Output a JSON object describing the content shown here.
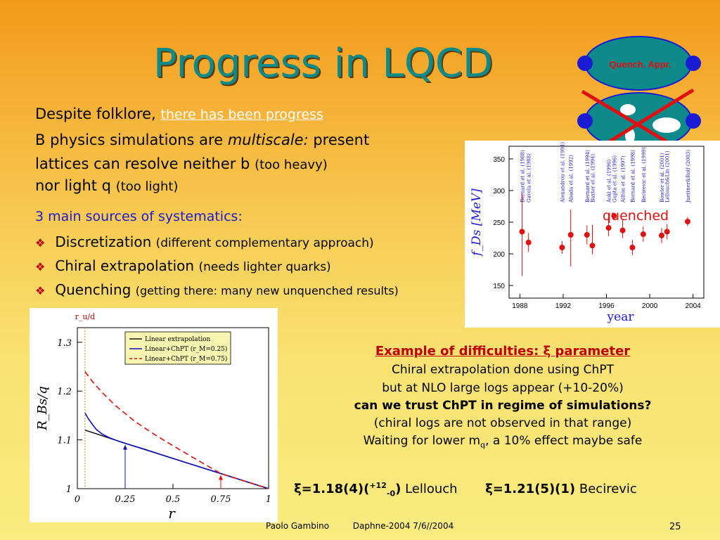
{
  "slide": {
    "title": "Progress in LQCD",
    "line1_prefix": "Despite folklore, ",
    "line1_link": "there has been progress",
    "line2a": "B physics simulations are ",
    "line2b": "multiscale:",
    "line2c": " present",
    "line3a": "lattices can resolve neither b ",
    "line3b": "(too heavy)",
    "line4a": "nor light q ",
    "line4b": "(too light)",
    "sources_heading": "3 main sources of systematics:",
    "bullets": [
      {
        "main": "Discretization ",
        "note": "(different complementary approach)"
      },
      {
        "main": "Chiral extrapolation ",
        "note": "(needs lighter quarks)"
      },
      {
        "main": "Quenching ",
        "note": "(getting there: many new unquenched results)"
      }
    ],
    "example_title": "Example of difficulties: ξ parameter",
    "example_lines": [
      "Chiral extrapolation done using ChPT",
      "but at NLO large logs appear (+10-20%)"
    ],
    "example_bold": "can we trust ChPT in regime of simulations?",
    "example_lines2": [
      "(chiral logs are not observed in that range)"
    ],
    "example_mq_pre": "Waiting for lower m",
    "example_mq_sub": "q",
    "example_mq_post": ", a 10% effect maybe safe",
    "result1_a": "ξ=1.18(4)(",
    "result1_sup": "+12",
    "result1_sub": "-0",
    "result1_b": ")",
    "result1_name": " Lellouch",
    "result2": "ξ=1.21(5)(1)",
    "result2_name": " Becirevic",
    "footer_author": "Paolo Gambino",
    "footer_conf": "Daphne-2004  7/6//2004",
    "page_number": "25",
    "badge_label": "Quench. Appr.",
    "quenched_label": "quenched"
  },
  "chart_data": [
    {
      "type": "scatter",
      "title": "",
      "xlabel": "year",
      "ylabel": "f_Ds [MeV]",
      "xlim": [
        1987,
        2005
      ],
      "ylim": [
        130,
        370
      ],
      "xticks": [
        "1988",
        "1992",
        "1996",
        "2000",
        "2004"
      ],
      "yticks": [
        "150",
        "200",
        "250",
        "300",
        "350"
      ],
      "grid": false,
      "references": [
        "Bernard et al. (1988)",
        "Gavela et al. (1988)",
        "Alexandrou et al. (1991)",
        "Abada et al. (1992)",
        "Bernard et al. (1994)",
        "Baxter et al. (1994)",
        "Aoki et al. (1996)",
        "Gupta et al. (1996)",
        "Allton et al. (1997)",
        "Bernard et al. (1998)",
        "Becirevic et al. (1999)",
        "Bowler et al. (2001)",
        "Lellouch&Lin (2001)",
        "Juettner&Rolf (2003)"
      ],
      "points": [
        {
          "x": 1988.2,
          "y": 235,
          "err_lo": 70,
          "err_hi": 60
        },
        {
          "x": 1988.8,
          "y": 218,
          "err_lo": 15,
          "err_hi": 15
        },
        {
          "x": 1991.9,
          "y": 210,
          "err_lo": 10,
          "err_hi": 10
        },
        {
          "x": 1992.7,
          "y": 230,
          "err_lo": 50,
          "err_hi": 40
        },
        {
          "x": 1994.2,
          "y": 230,
          "err_lo": 15,
          "err_hi": 15
        },
        {
          "x": 1994.7,
          "y": 213,
          "err_lo": 14,
          "err_hi": 33
        },
        {
          "x": 1996.2,
          "y": 241,
          "err_lo": 13,
          "err_hi": 23
        },
        {
          "x": 1996.7,
          "y": 260,
          "err_lo": 5,
          "err_hi": 5
        },
        {
          "x": 1997.5,
          "y": 237,
          "err_lo": 12,
          "err_hi": 18
        },
        {
          "x": 1998.4,
          "y": 210,
          "err_lo": 12,
          "err_hi": 12
        },
        {
          "x": 1999.4,
          "y": 231,
          "err_lo": 12,
          "err_hi": 12
        },
        {
          "x": 2001.1,
          "y": 229,
          "err_lo": 12,
          "err_hi": 12
        },
        {
          "x": 2001.6,
          "y": 235,
          "err_lo": 12,
          "err_hi": 12
        },
        {
          "x": 2003.5,
          "y": 251,
          "err_lo": 7,
          "err_hi": 7
        }
      ],
      "color": "#e01010"
    },
    {
      "type": "line",
      "title": "",
      "xlabel": "r",
      "ylabel": "R_Bs/q",
      "top_label": "r_u/d",
      "xlim": [
        0,
        1
      ],
      "ylim": [
        1,
        1.33
      ],
      "xticks": [
        "0",
        "0.25",
        "0.5",
        "0.75",
        "1"
      ],
      "yticks": [
        "1",
        "1.1",
        "1.2",
        "1.3"
      ],
      "grid": false,
      "legend_position": "top",
      "series": [
        {
          "name": "Linear extrapolation",
          "color": "#1a1a1a",
          "style": "solid",
          "x": [
            0.04,
            0.25,
            0.5,
            0.75,
            1.0
          ],
          "y": [
            1.12,
            1.093,
            1.062,
            1.031,
            1.0
          ]
        },
        {
          "name": "Linear+ChPT (r_M=0.25)",
          "color": "#1010c0",
          "style": "solid",
          "x": [
            0.04,
            0.06,
            0.08,
            0.1,
            0.13,
            0.17,
            0.21,
            0.25,
            0.35,
            0.5,
            0.75,
            1.0
          ],
          "y": [
            1.155,
            1.142,
            1.131,
            1.121,
            1.112,
            1.104,
            1.098,
            1.093,
            1.081,
            1.062,
            1.031,
            1.0
          ]
        },
        {
          "name": "Linear+ChPT (r_M=0.75)",
          "color": "#e01010",
          "style": "dashed",
          "x": [
            0.04,
            0.08,
            0.13,
            0.2,
            0.3,
            0.4,
            0.5,
            0.6,
            0.75,
            1.0
          ],
          "y": [
            1.24,
            1.219,
            1.197,
            1.17,
            1.138,
            1.112,
            1.088,
            1.065,
            1.031,
            1.0
          ]
        }
      ],
      "markers": [
        {
          "x": 0.25,
          "color": "#1010c0"
        },
        {
          "x": 0.75,
          "color": "#e01010"
        }
      ],
      "reference_line_x": 0.04
    }
  ]
}
